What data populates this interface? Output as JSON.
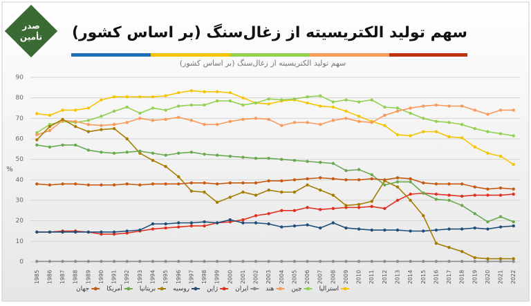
{
  "logo": {
    "line1": "صدر",
    "line2": "تأمین"
  },
  "chart_data": {
    "type": "line",
    "title": "سهم تولید الکتریسیته از زغال‌سنگ (بر اساس کشور)",
    "subtitle": "سهم تولید الکتریسیته از زغال‌سنگ (بر اساس کشور)",
    "y_label": "%",
    "categories": [
      "1985",
      "1986",
      "1987",
      "1988",
      "1989",
      "1990",
      "1991",
      "1992",
      "1993",
      "1994",
      "1995",
      "1996",
      "1997",
      "1998",
      "1999",
      "2000",
      "2001",
      "2002",
      "2003",
      "2004",
      "2005",
      "2006",
      "2007",
      "2008",
      "2009",
      "2010",
      "2011",
      "2012",
      "2013",
      "2014",
      "2015",
      "2016",
      "2017",
      "2018",
      "2019",
      "2020",
      "2021",
      "2022"
    ],
    "ylim": [
      0,
      90
    ],
    "yticks": [
      0,
      10,
      20,
      30,
      40,
      50,
      60,
      70,
      80,
      90
    ],
    "grid": true,
    "series": [
      {
        "name": "استرالیا",
        "color": "#f5c400",
        "values": [
          72.3,
          71.5,
          74,
          74,
          75,
          79,
          80.5,
          80.5,
          80.5,
          80.5,
          81,
          82.5,
          83.5,
          83,
          83,
          82.5,
          80,
          77.5,
          77,
          78.5,
          79,
          77.5,
          76,
          75.5,
          73.5,
          71,
          68.5,
          66.5,
          62,
          61.5,
          63.5,
          63.5,
          61,
          60.5,
          56,
          53,
          51.5,
          47.5
        ]
      },
      {
        "name": "چین",
        "color": "#92d050",
        "values": [
          63,
          67,
          68.5,
          68,
          69,
          71,
          73.5,
          75.5,
          72.5,
          75,
          74,
          76,
          76.5,
          76.5,
          78.5,
          78.5,
          76.5,
          77.5,
          79.5,
          79,
          79.5,
          80.5,
          81,
          78,
          79,
          78,
          79,
          75.5,
          75,
          72.5,
          70,
          68.5,
          68,
          67,
          65,
          63.5,
          62.5,
          61.5
        ]
      },
      {
        "name": "هند",
        "color": "#f79a5a",
        "values": [
          62,
          64,
          69,
          68.5,
          67,
          66.5,
          67,
          68,
          70,
          69,
          69.5,
          70.5,
          69,
          67,
          67,
          68.5,
          69.5,
          70,
          69.5,
          66.5,
          68,
          68,
          67,
          69,
          70,
          68.5,
          68,
          71.5,
          73.5,
          75,
          76,
          76.5,
          76,
          76,
          74,
          72,
          74,
          74
        ]
      },
      {
        "name": "ایران",
        "color": "#8c8c8c",
        "values": [
          0.2,
          0.2,
          0.2,
          0.2,
          0.2,
          0.2,
          0.2,
          0.2,
          0.2,
          0.2,
          0.2,
          0.2,
          0.2,
          0.2,
          0.2,
          0.2,
          0.2,
          0.2,
          0.2,
          0.2,
          0.2,
          0.2,
          0.2,
          0.2,
          0.2,
          0.2,
          0.2,
          0.2,
          0.2,
          0.2,
          0.2,
          0.2,
          0.2,
          0.2,
          0.2,
          0.2,
          0.2,
          0.2
        ]
      },
      {
        "name": "ژاپن",
        "color": "#e0301e",
        "values": [
          14.5,
          14.5,
          15,
          15,
          14.5,
          13.5,
          13.5,
          14,
          15,
          16,
          16.5,
          17,
          17.5,
          17.5,
          19,
          19.5,
          20.5,
          22.5,
          23.5,
          25,
          25,
          26.5,
          25.5,
          26,
          26.5,
          26.5,
          27,
          26,
          30,
          33,
          33.5,
          33,
          32.5,
          32,
          32.5,
          32.5,
          32.5,
          33
        ]
      },
      {
        "name": "روسیه",
        "color": "#1f4e79",
        "values": [
          14.5,
          14.5,
          14.5,
          14.5,
          14.5,
          14.5,
          14.5,
          15,
          15.5,
          18.5,
          18.5,
          19,
          19,
          19.5,
          19,
          20.5,
          19,
          19,
          18.5,
          17,
          17.5,
          18,
          16.5,
          19,
          16.5,
          16,
          15.5,
          15.5,
          15.5,
          15,
          15,
          15.5,
          16,
          16,
          16.5,
          16,
          17,
          17.5
        ]
      },
      {
        "name": "بریتانیا",
        "color": "#a67c00",
        "values": [
          59.5,
          66,
          69.5,
          66,
          63.5,
          64.5,
          65,
          60,
          53,
          49.5,
          46.5,
          41.5,
          34.5,
          34,
          29,
          31.5,
          34,
          32.5,
          35,
          34,
          34,
          37.5,
          35,
          32.5,
          27.5,
          28,
          29.5,
          39.5,
          36.5,
          30,
          22.5,
          9,
          7,
          5,
          2,
          1.5,
          1.5,
          1.5
        ]
      },
      {
        "name": "آمریکا",
        "color": "#6aa84f",
        "values": [
          57,
          56,
          57,
          57,
          54.5,
          53.5,
          53,
          53.5,
          54,
          53,
          52,
          53,
          53.5,
          52.5,
          52,
          51.5,
          51,
          50.5,
          50.5,
          50,
          49.5,
          49,
          48.5,
          48,
          44.5,
          45,
          42.5,
          37.5,
          39,
          39,
          33.5,
          30.5,
          30,
          27.5,
          23.5,
          19.5,
          22,
          19.5
        ]
      },
      {
        "name": "جهان",
        "color": "#c65911",
        "values": [
          38,
          37.5,
          38,
          38,
          37.5,
          37.5,
          37.5,
          38,
          37.5,
          38,
          38,
          38,
          38.5,
          38.5,
          38,
          38.5,
          38.5,
          38.5,
          39.5,
          39.5,
          40,
          40.5,
          41,
          40.5,
          40,
          40,
          40.5,
          40,
          41,
          40.5,
          38.5,
          38,
          38,
          38,
          36.5,
          35.5,
          36,
          35.5
        ]
      }
    ]
  }
}
